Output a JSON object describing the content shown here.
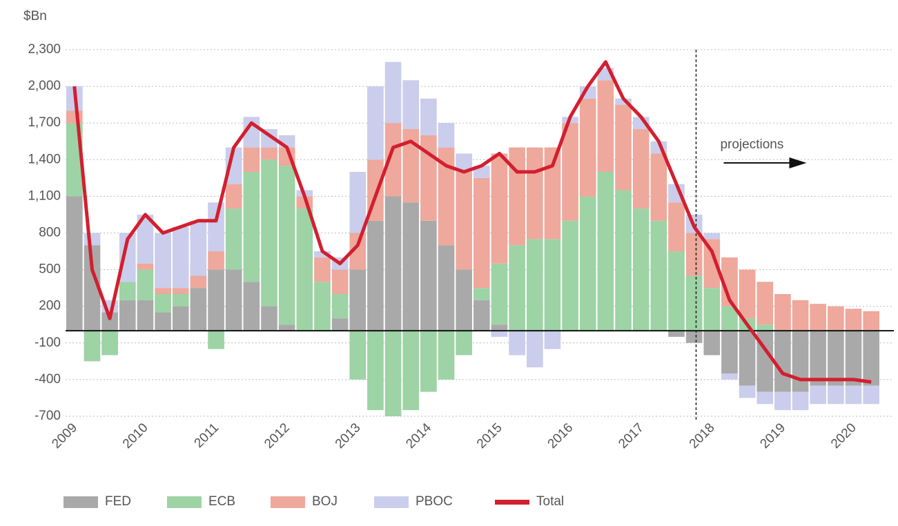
{
  "chart_data": {
    "type": "bar",
    "stacked": true,
    "y_unit_label": "$Bn",
    "annotation": "projections",
    "projection_start": "2018",
    "grid": true,
    "legend": "bottom",
    "ylim": [
      -700,
      2300
    ],
    "yticks": [
      -700,
      -400,
      -100,
      200,
      500,
      800,
      {
        "value": 1100,
        "label": "1,100"
      },
      {
        "value": 1400,
        "label": "1,400"
      },
      {
        "value": 1700,
        "label": "1,700"
      },
      {
        "value": 2000,
        "label": "2,000"
      },
      {
        "value": 2300,
        "label": "2,300"
      }
    ],
    "categories": [
      "2009",
      null,
      null,
      null,
      "2010",
      null,
      null,
      null,
      "2011",
      null,
      null,
      null,
      "2012",
      null,
      null,
      null,
      "2013",
      null,
      null,
      null,
      "2014",
      null,
      null,
      null,
      "2015",
      null,
      null,
      null,
      "2016",
      null,
      null,
      null,
      "2017",
      null,
      null,
      null,
      "2018",
      null,
      null,
      null,
      "2019",
      null,
      null,
      null,
      "2020",
      null
    ],
    "series": [
      {
        "name": "FED",
        "color": "#a9a9a9",
        "values": [
          1100,
          700,
          150,
          250,
          250,
          150,
          200,
          350,
          500,
          500,
          400,
          200,
          50,
          0,
          0,
          100,
          500,
          900,
          1100,
          1050,
          900,
          700,
          500,
          250,
          50,
          0,
          0,
          0,
          0,
          0,
          0,
          0,
          0,
          0,
          -50,
          -100,
          -200,
          -350,
          -450,
          -500,
          -500,
          -500,
          -450,
          -450,
          -450,
          -450
        ]
      },
      {
        "name": "ECB",
        "color": "#9dd3a5",
        "values": [
          600,
          -250,
          -200,
          150,
          250,
          150,
          100,
          0,
          -150,
          500,
          900,
          1200,
          1300,
          1000,
          400,
          200,
          -400,
          -650,
          -700,
          -650,
          -500,
          -400,
          -200,
          100,
          500,
          700,
          750,
          750,
          900,
          1100,
          1300,
          1150,
          1000,
          900,
          650,
          450,
          350,
          200,
          100,
          50,
          0,
          0,
          0,
          0,
          0,
          0
        ]
      },
      {
        "name": "BOJ",
        "color": "#eea89c",
        "values": [
          100,
          0,
          0,
          0,
          50,
          50,
          50,
          100,
          150,
          200,
          200,
          100,
          150,
          100,
          200,
          200,
          300,
          500,
          600,
          600,
          700,
          800,
          800,
          900,
          900,
          800,
          750,
          750,
          800,
          800,
          750,
          700,
          650,
          550,
          400,
          350,
          400,
          400,
          400,
          350,
          300,
          250,
          220,
          200,
          180,
          160
        ]
      },
      {
        "name": "PBOC",
        "color": "#cacdeb",
        "values": [
          200,
          100,
          100,
          400,
          400,
          450,
          500,
          450,
          400,
          300,
          250,
          150,
          100,
          50,
          50,
          100,
          500,
          600,
          500,
          400,
          300,
          200,
          150,
          100,
          -50,
          -200,
          -300,
          -150,
          50,
          100,
          100,
          50,
          100,
          100,
          150,
          150,
          50,
          -50,
          -100,
          -100,
          -150,
          -150,
          -150,
          -150,
          -150,
          -150
        ]
      },
      {
        "name": "Total",
        "type": "line",
        "color": "#d21f2f",
        "values": [
          2000,
          500,
          100,
          750,
          950,
          800,
          850,
          900,
          900,
          1500,
          1700,
          1600,
          1500,
          1100,
          650,
          550,
          700,
          1100,
          1500,
          1550,
          1450,
          1350,
          1300,
          1350,
          1450,
          1300,
          1300,
          1350,
          1750,
          2000,
          2200,
          1900,
          1750,
          1550,
          1200,
          850,
          650,
          250,
          50,
          -150,
          -350,
          -400,
          -400,
          -400,
          -400,
          -420
        ]
      }
    ]
  }
}
